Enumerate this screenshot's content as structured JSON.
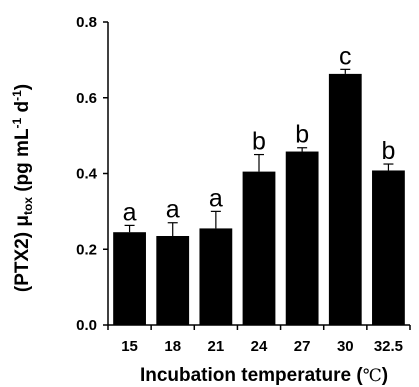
{
  "chart_data": {
    "type": "bar",
    "categories": [
      "15",
      "18",
      "21",
      "24",
      "27",
      "30",
      "32.5"
    ],
    "values": [
      0.245,
      0.235,
      0.255,
      0.405,
      0.458,
      0.663,
      0.408
    ],
    "errors": [
      0.018,
      0.035,
      0.045,
      0.045,
      0.01,
      0.012,
      0.017
    ],
    "significance_letters": [
      "a",
      "a",
      "a",
      "b",
      "b",
      "c",
      "b"
    ],
    "ylim": [
      0,
      0.8
    ],
    "yticks": [
      "0.0",
      "0.2",
      "0.4",
      "0.6",
      "0.8"
    ],
    "xlabel": {
      "main": "Incubation temperature (",
      "unit": "℃",
      "close": ")"
    },
    "ylabel": {
      "a": "(PTX2) μ",
      "a_sub": "tox",
      "b": " (pg mL",
      "b_sup": "-1",
      "c": " d",
      "c_sup": "-1",
      "d": ")"
    },
    "bar_color": "#000000",
    "grid": false
  }
}
